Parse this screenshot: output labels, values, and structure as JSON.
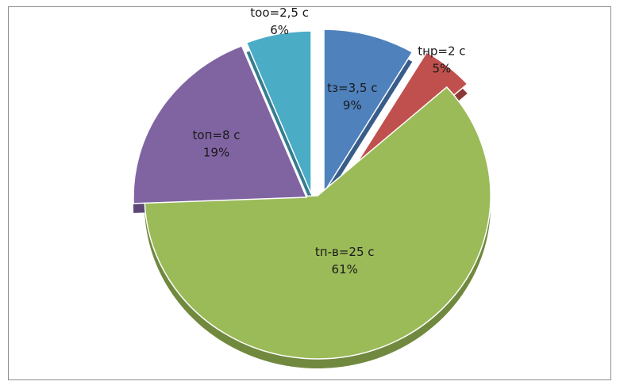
{
  "chart_data": {
    "type": "pie",
    "style": "3d-exploded",
    "slices": [
      {
        "label": "tз=3,5 с",
        "value": 3.5,
        "percent": "9%",
        "color": "#4f81bd",
        "side_color": "#385d8a"
      },
      {
        "label": "tнр=2 с",
        "value": 2,
        "percent": "5%",
        "color": "#c0504d",
        "side_color": "#8c3836"
      },
      {
        "label": "tп-в=25 с",
        "value": 25,
        "percent": "61%",
        "color": "#9bbb59",
        "side_color": "#71893f"
      },
      {
        "label": "tоп=8 с",
        "value": 8,
        "percent": "19%",
        "color": "#8064a2",
        "side_color": "#5c4776"
      },
      {
        "label": "tоо=2,5 с",
        "value": 2.5,
        "percent": "6%",
        "color": "#4bacc6",
        "side_color": "#357d91"
      }
    ],
    "start_angle": "top",
    "direction": "clockwise",
    "legend": "none"
  }
}
